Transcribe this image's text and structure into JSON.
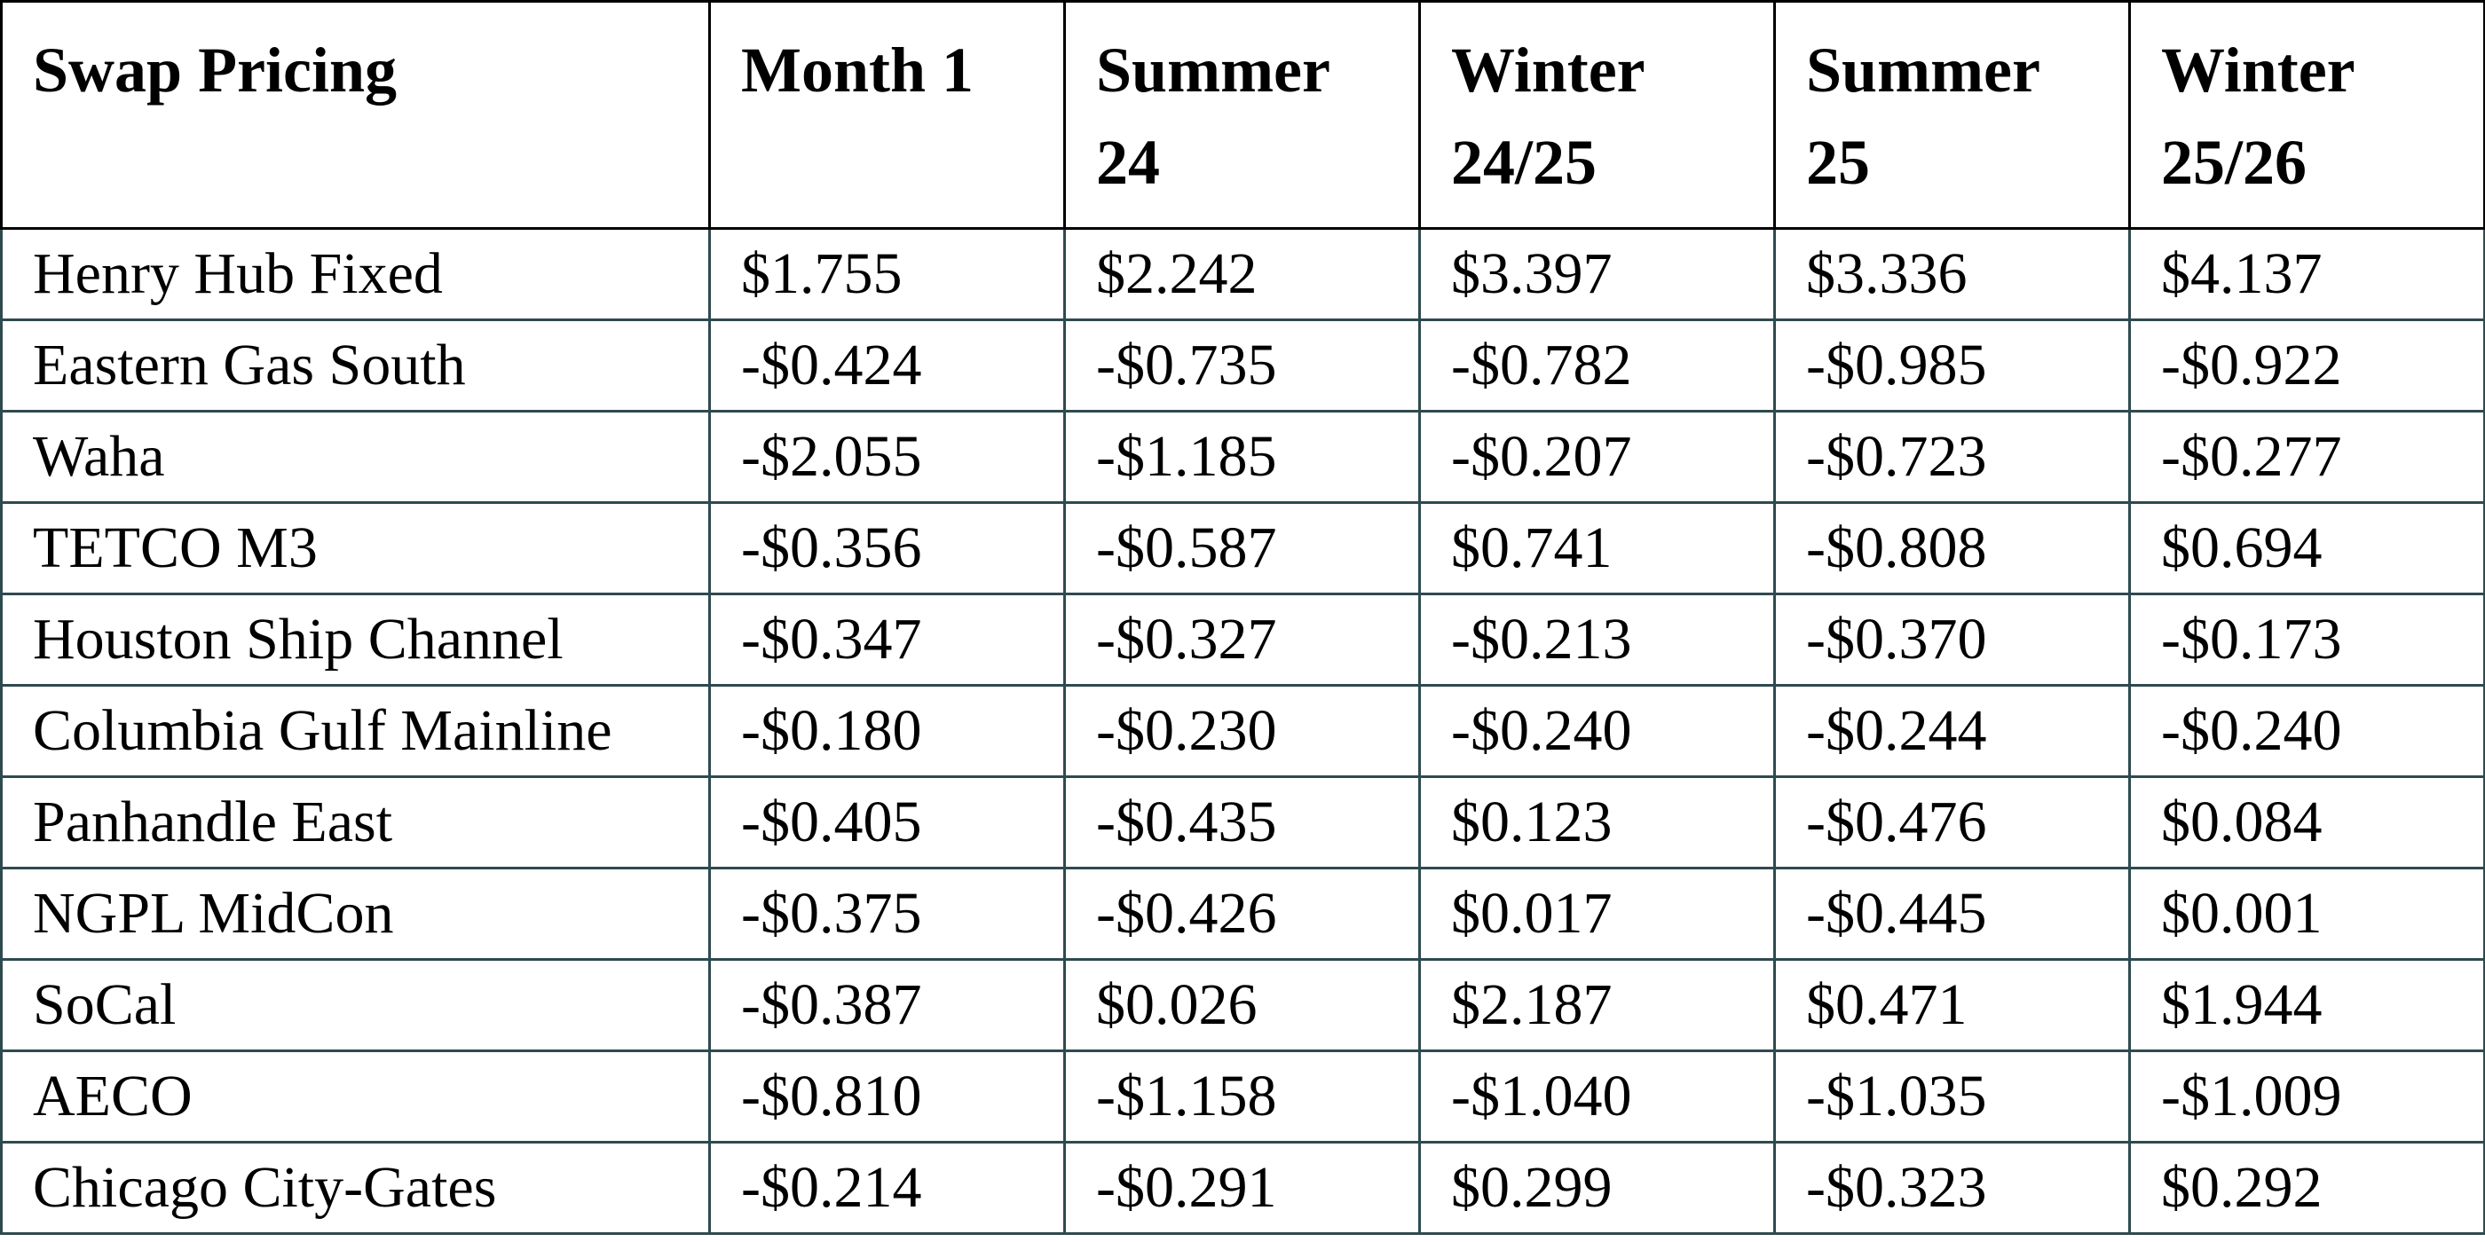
{
  "table": {
    "header": [
      "Swap Pricing",
      "Month 1",
      "Summer 24",
      "Winter 24/25",
      "Summer 25",
      "Winter 25/26"
    ],
    "rows": [
      [
        "Henry Hub Fixed",
        "$1.755",
        "$2.242",
        "$3.397",
        "$3.336",
        "$4.137"
      ],
      [
        "Eastern Gas South",
        "-$0.424",
        "-$0.735",
        "-$0.782",
        "-$0.985",
        "-$0.922"
      ],
      [
        "Waha",
        "-$2.055",
        "-$1.185",
        "-$0.207",
        "-$0.723",
        "-$0.277"
      ],
      [
        "TETCO M3",
        "-$0.356",
        "-$0.587",
        "$0.741",
        "-$0.808",
        "$0.694"
      ],
      [
        "Houston Ship Channel",
        "-$0.347",
        "-$0.327",
        "-$0.213",
        "-$0.370",
        "-$0.173"
      ],
      [
        "Columbia Gulf Mainline",
        "-$0.180",
        "-$0.230",
        "-$0.240",
        "-$0.244",
        "-$0.240"
      ],
      [
        "Panhandle East",
        "-$0.405",
        "-$0.435",
        "$0.123",
        "-$0.476",
        "$0.084"
      ],
      [
        "NGPL MidCon",
        "-$0.375",
        "-$0.426",
        "$0.017",
        "-$0.445",
        "$0.001"
      ],
      [
        "SoCal",
        "-$0.387",
        "$0.026",
        "$2.187",
        "$0.471",
        "$1.944"
      ],
      [
        "AECO",
        "-$0.810",
        "-$1.158",
        "-$1.040",
        "-$1.035",
        "-$1.009"
      ],
      [
        "Chicago City-Gates",
        "-$0.214",
        "-$0.291",
        "$0.299",
        "-$0.323",
        "$0.292"
      ]
    ]
  }
}
